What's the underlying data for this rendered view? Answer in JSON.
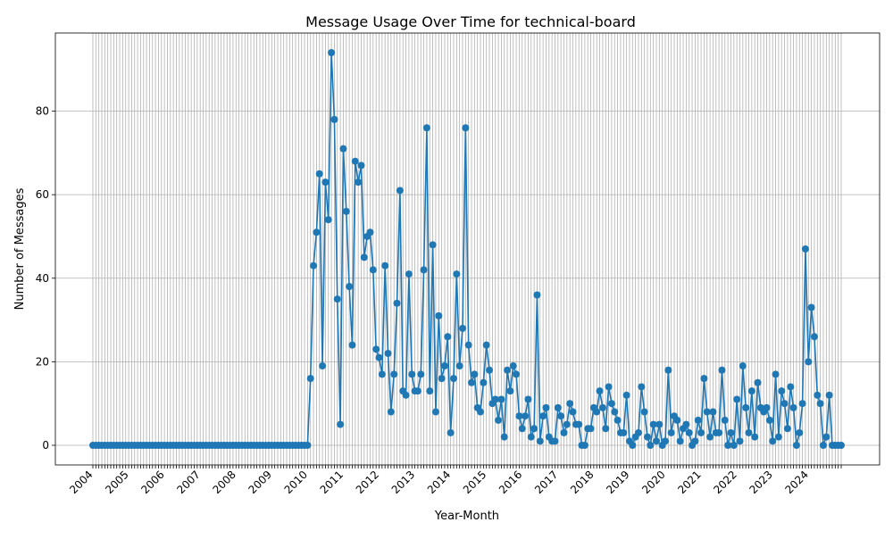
{
  "chart_data": {
    "type": "line",
    "title": "Message Usage Over Time for technical-board",
    "xlabel": "Year-Month",
    "ylabel": "Number of Messages",
    "x_start": "2004-01",
    "x_end": "2024-12",
    "x_tick_labels": [
      "2004",
      "2005",
      "2006",
      "2007",
      "2008",
      "2009",
      "2010",
      "2011",
      "2012",
      "2013",
      "2014",
      "2015",
      "2016",
      "2017",
      "2018",
      "2019",
      "2020",
      "2021",
      "2022",
      "2023",
      "2024"
    ],
    "y_ticks": [
      0,
      20,
      40,
      60,
      80
    ],
    "ylim": [
      -4.7,
      98.7
    ],
    "grid": true,
    "legend": "none",
    "line_color": "#1f77b4",
    "series": [
      {
        "values": [
          0,
          0,
          0,
          0,
          0,
          0,
          0,
          0,
          0,
          0,
          0,
          0,
          0,
          0,
          0,
          0,
          0,
          0,
          0,
          0,
          0,
          0,
          0,
          0,
          0,
          0,
          0,
          0,
          0,
          0,
          0,
          0,
          0,
          0,
          0,
          0,
          0,
          0,
          0,
          0,
          0,
          0,
          0,
          0,
          0,
          0,
          0,
          0,
          0,
          0,
          0,
          0,
          0,
          0,
          0,
          0,
          0,
          0,
          0,
          0,
          0,
          0,
          0,
          0,
          0,
          0,
          0,
          0,
          0,
          0,
          0,
          0,
          0,
          16,
          43,
          51,
          65,
          19,
          63,
          54,
          94,
          78,
          35,
          5,
          71,
          56,
          38,
          24,
          68,
          63,
          67,
          45,
          50,
          51,
          42,
          23,
          21,
          17,
          43,
          22,
          8,
          17,
          34,
          61,
          13,
          12,
          41,
          17,
          13,
          13,
          17,
          42,
          76,
          13,
          48,
          8,
          31,
          16,
          19,
          26,
          3,
          16,
          41,
          19,
          28,
          76,
          24,
          15,
          17,
          9,
          8,
          15,
          24,
          18,
          10,
          11,
          6,
          11,
          2,
          18,
          13,
          19,
          17,
          7,
          4,
          7,
          11,
          2,
          4,
          36,
          1,
          7,
          9,
          2,
          1,
          1,
          9,
          7,
          3,
          5,
          10,
          8,
          5,
          5,
          0,
          0,
          4,
          4,
          9,
          8,
          13,
          9,
          4,
          14,
          10,
          8,
          6,
          3,
          3,
          12,
          1,
          0,
          2,
          3,
          14,
          8,
          2,
          0,
          5,
          1,
          5,
          0,
          1,
          18,
          3,
          7,
          6,
          1,
          4,
          5,
          3,
          0,
          1,
          6,
          3,
          16,
          8,
          2,
          8,
          3,
          3,
          18,
          6,
          0,
          3,
          0,
          11,
          1,
          19,
          9,
          3,
          13,
          2,
          15,
          9,
          8,
          9,
          6,
          1,
          17,
          2,
          13,
          10,
          4,
          14,
          9,
          0,
          3,
          10,
          47,
          20,
          33,
          26,
          12,
          10,
          0,
          2,
          12,
          0,
          0,
          0,
          0
        ]
      }
    ]
  }
}
